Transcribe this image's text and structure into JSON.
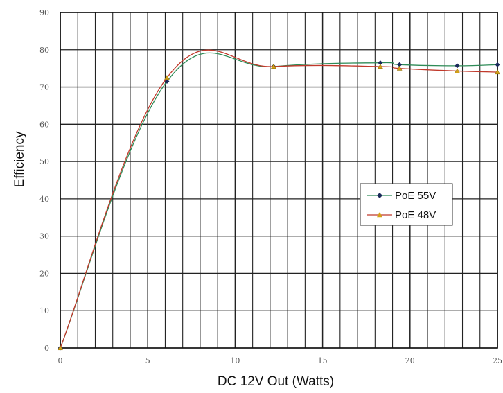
{
  "chart_data": {
    "type": "line",
    "title": "",
    "xlabel": "DC 12V Out (Watts)",
    "ylabel": "Efficiency",
    "xlim": [
      0,
      25
    ],
    "ylim": [
      0,
      90
    ],
    "x_ticks": [
      0,
      5,
      10,
      15,
      20,
      25
    ],
    "y_ticks": [
      0,
      10,
      20,
      30,
      40,
      50,
      60,
      70,
      80,
      90
    ],
    "grid": true,
    "legend_position": "right",
    "series": [
      {
        "name": "PoE 55V",
        "color": "#2e8b57",
        "marker": "diamond",
        "marker_color": "#1a2a5a",
        "x": [
          0,
          6.1,
          12.2,
          18.3,
          19.4,
          22.7,
          25
        ],
        "y": [
          0,
          71.5,
          75.5,
          76.5,
          76.0,
          75.7,
          76.0
        ]
      },
      {
        "name": "PoE 48V",
        "color": "#c0392b",
        "marker": "triangle",
        "marker_color": "#d4a017",
        "x": [
          0,
          6.1,
          12.2,
          18.3,
          19.4,
          22.7,
          25
        ],
        "y": [
          0,
          72.5,
          75.5,
          75.5,
          75.0,
          74.3,
          74.0
        ]
      }
    ]
  }
}
